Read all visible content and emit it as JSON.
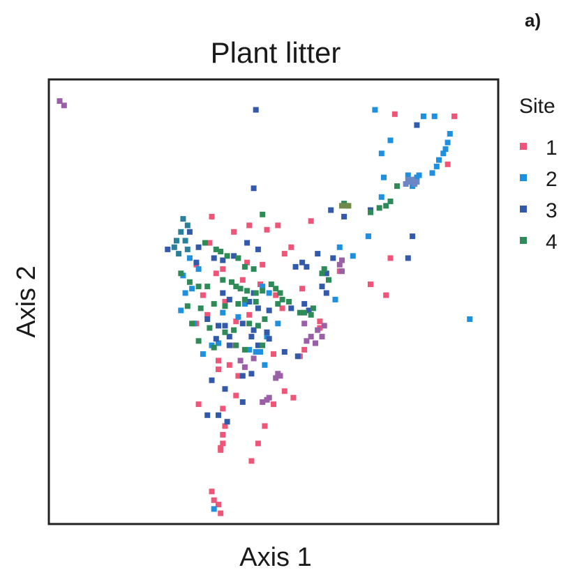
{
  "chart_data": {
    "type": "scatter",
    "panel_label": "a)",
    "title": "Plant litter",
    "xlabel": "Axis 1",
    "ylabel": "Axis 2",
    "xlim": [
      0,
      100
    ],
    "ylim": [
      0,
      100
    ],
    "grid": false,
    "legend": {
      "title": "Site",
      "placement": "right",
      "entries": [
        {
          "label": "1",
          "color": "#ef5577"
        },
        {
          "label": "2",
          "color": "#1f8fe0"
        },
        {
          "label": "3",
          "color": "#3359ab"
        },
        {
          "label": "4",
          "color": "#2e8b57"
        }
      ]
    },
    "series": [
      {
        "name": "1",
        "color": "#ef5577",
        "points": [
          [
            77.5,
            93
          ],
          [
            91.0,
            92.5
          ],
          [
            89.5,
            81.5
          ],
          [
            36.0,
            69.5
          ],
          [
            44.5,
            67.5
          ],
          [
            48.5,
            66.5
          ],
          [
            51.0,
            67.5
          ],
          [
            58.5,
            68.5
          ],
          [
            41.0,
            66.0
          ],
          [
            35.5,
            63.5
          ],
          [
            52.5,
            61.0
          ],
          [
            54.0,
            62.5
          ],
          [
            47.5,
            58.5
          ],
          [
            44.0,
            59.0
          ],
          [
            38.5,
            57.5
          ],
          [
            32.5,
            58.5
          ],
          [
            37.0,
            56.5
          ],
          [
            43.0,
            55.0
          ],
          [
            47.0,
            54.0
          ],
          [
            34.0,
            51.5
          ],
          [
            39.0,
            50.0
          ],
          [
            35.0,
            47.0
          ],
          [
            32.5,
            45.0
          ],
          [
            50.5,
            51.5
          ],
          [
            56.5,
            53.0
          ],
          [
            52.0,
            48.5
          ],
          [
            41.5,
            45.5
          ],
          [
            44.5,
            47.0
          ],
          [
            41.0,
            40.0
          ],
          [
            37.5,
            36.5
          ],
          [
            40.0,
            35.5
          ],
          [
            37.5,
            34.5
          ],
          [
            42.0,
            33.0
          ],
          [
            50.0,
            38.0
          ],
          [
            56.0,
            37.5
          ],
          [
            57.0,
            39.0
          ],
          [
            60.5,
            44.0
          ],
          [
            60.5,
            45.5
          ],
          [
            65.0,
            57.0
          ],
          [
            71.5,
            65.0
          ],
          [
            76.5,
            60.0
          ],
          [
            75.5,
            51.5
          ],
          [
            72.0,
            54.0
          ],
          [
            52.5,
            29.5
          ],
          [
            41.5,
            28.5
          ],
          [
            50.0,
            26.5
          ],
          [
            54.5,
            28.0
          ],
          [
            33.0,
            26.5
          ],
          [
            38.5,
            25.5
          ],
          [
            39.0,
            21.5
          ],
          [
            38.5,
            19.5
          ],
          [
            38.5,
            17.5
          ],
          [
            38.0,
            16.0
          ],
          [
            38.0,
            16.5
          ],
          [
            46.5,
            17.5
          ],
          [
            45.0,
            13.5
          ],
          [
            48.0,
            21.5
          ],
          [
            36.0,
            6.5
          ],
          [
            36.5,
            4.5
          ],
          [
            37.5,
            3.5
          ],
          [
            38.0,
            1.5
          ]
        ]
      },
      {
        "name": "2",
        "color": "#1f8fe0",
        "points": [
          [
            73.0,
            94.0
          ],
          [
            84.0,
            92.5
          ],
          [
            86.5,
            92.5
          ],
          [
            76.5,
            87.0
          ],
          [
            90.0,
            88.5
          ],
          [
            89.5,
            86.5
          ],
          [
            89.0,
            85.0
          ],
          [
            88.5,
            84.0
          ],
          [
            87.5,
            82.5
          ],
          [
            87.0,
            81.0
          ],
          [
            86.0,
            79.5
          ],
          [
            83.0,
            79.0
          ],
          [
            75.0,
            78.5
          ],
          [
            80.5,
            79.0
          ],
          [
            82.0,
            78.0
          ],
          [
            82.5,
            78.5
          ],
          [
            81.5,
            76.5
          ],
          [
            94.5,
            46.0
          ],
          [
            64.0,
            50.5
          ],
          [
            31.0,
            60.0
          ],
          [
            33.0,
            57.5
          ],
          [
            29.5,
            56.0
          ],
          [
            31.5,
            53.0
          ],
          [
            30.0,
            52.0
          ],
          [
            29.0,
            48.0
          ],
          [
            32.0,
            45.0
          ],
          [
            43.5,
            49.5
          ],
          [
            42.0,
            46.5
          ],
          [
            47.5,
            53.5
          ],
          [
            49.0,
            52.0
          ],
          [
            51.0,
            45.0
          ],
          [
            48.5,
            42.0
          ],
          [
            46.0,
            38.5
          ],
          [
            34.0,
            38.0
          ],
          [
            36.0,
            40.0
          ],
          [
            37.5,
            40.5
          ],
          [
            44.5,
            39.0
          ],
          [
            38.5,
            47.5
          ],
          [
            47.0,
            38.5
          ],
          [
            48.0,
            35.5
          ],
          [
            36.5,
            2.5
          ],
          [
            65.0,
            62.5
          ],
          [
            68.0,
            60.5
          ],
          [
            71.5,
            65.0
          ],
          [
            74.5,
            74.0
          ],
          [
            74.5,
            84.0
          ]
        ]
      },
      {
        "name": "3",
        "color": "#3359ab",
        "points": [
          [
            46.0,
            94.0
          ],
          [
            82.5,
            90.5
          ],
          [
            45.5,
            76.0
          ],
          [
            63.0,
            71.0
          ],
          [
            66.0,
            69.5
          ],
          [
            72.0,
            71.0
          ],
          [
            81.5,
            65.0
          ],
          [
            80.5,
            60.0
          ],
          [
            26.0,
            62.0
          ],
          [
            31.0,
            66.0
          ],
          [
            33.0,
            62.5
          ],
          [
            32.5,
            59.0
          ],
          [
            36.5,
            60.0
          ],
          [
            38.5,
            59.5
          ],
          [
            44.0,
            63.5
          ],
          [
            46.5,
            62.0
          ],
          [
            41.0,
            60.5
          ],
          [
            38.5,
            52.0
          ],
          [
            40.0,
            50.5
          ],
          [
            45.5,
            52.0
          ],
          [
            44.5,
            50.0
          ],
          [
            46.5,
            48.5
          ],
          [
            49.0,
            48.0
          ],
          [
            35.0,
            46.0
          ],
          [
            37.5,
            44.5
          ],
          [
            39.0,
            44.5
          ],
          [
            40.0,
            42.0
          ],
          [
            43.0,
            45.0
          ],
          [
            45.5,
            43.5
          ],
          [
            48.5,
            43.0
          ],
          [
            54.0,
            48.5
          ],
          [
            57.0,
            49.5
          ],
          [
            58.0,
            48.0
          ],
          [
            37.0,
            41.5
          ],
          [
            40.0,
            40.0
          ],
          [
            45.0,
            42.0
          ],
          [
            46.5,
            40.0
          ],
          [
            49.0,
            41.5
          ],
          [
            52.5,
            38.5
          ],
          [
            55.5,
            37.5
          ],
          [
            43.0,
            33.0
          ],
          [
            45.0,
            33.5
          ],
          [
            36.0,
            32.0
          ],
          [
            39.0,
            30.0
          ],
          [
            43.0,
            27.0
          ],
          [
            35.0,
            24.0
          ],
          [
            37.5,
            24.0
          ],
          [
            39.5,
            22.5
          ],
          [
            55.0,
            58.0
          ],
          [
            56.5,
            59.0
          ],
          [
            57.5,
            58.0
          ],
          [
            60.0,
            61.0
          ],
          [
            63.5,
            60.0
          ],
          [
            62.0,
            56.5
          ],
          [
            61.0,
            53.5
          ],
          [
            62.0,
            52.0
          ]
        ]
      },
      {
        "name": "4",
        "color": "#2e8b57",
        "points": [
          [
            78.0,
            76.5
          ],
          [
            76.5,
            73.0
          ],
          [
            75.5,
            72.0
          ],
          [
            74.0,
            71.5
          ],
          [
            72.0,
            70.5
          ],
          [
            66.0,
            72.5
          ],
          [
            47.5,
            70.0
          ],
          [
            34.5,
            63.5
          ],
          [
            37.0,
            62.0
          ],
          [
            38.0,
            61.5
          ],
          [
            39.5,
            60.5
          ],
          [
            42.0,
            60.0
          ],
          [
            43.5,
            58.0
          ],
          [
            45.5,
            57.5
          ],
          [
            29.0,
            56.5
          ],
          [
            31.0,
            54.5
          ],
          [
            33.0,
            53.5
          ],
          [
            35.0,
            53.5
          ],
          [
            38.5,
            55.0
          ],
          [
            40.5,
            54.5
          ],
          [
            41.5,
            53.5
          ],
          [
            42.5,
            53.0
          ],
          [
            44.0,
            52.5
          ],
          [
            46.0,
            52.0
          ],
          [
            47.5,
            52.5
          ],
          [
            49.5,
            54.0
          ],
          [
            50.5,
            53.0
          ],
          [
            51.5,
            52.0
          ],
          [
            52.0,
            50.5
          ],
          [
            53.5,
            50.0
          ],
          [
            30.5,
            49.0
          ],
          [
            33.5,
            48.5
          ],
          [
            36.5,
            49.5
          ],
          [
            39.0,
            49.0
          ],
          [
            42.0,
            49.5
          ],
          [
            43.5,
            50.5
          ],
          [
            46.0,
            50.0
          ],
          [
            51.0,
            49.5
          ],
          [
            56.0,
            47.5
          ],
          [
            57.0,
            47.5
          ],
          [
            58.5,
            47.0
          ],
          [
            59.0,
            48.5
          ],
          [
            31.5,
            45.0
          ],
          [
            35.5,
            44.0
          ],
          [
            39.0,
            43.0
          ],
          [
            41.0,
            43.5
          ],
          [
            44.5,
            45.0
          ],
          [
            46.5,
            44.5
          ],
          [
            48.0,
            46.0
          ],
          [
            33.0,
            41.0
          ],
          [
            36.5,
            39.5
          ],
          [
            41.5,
            40.0
          ],
          [
            43.5,
            39.0
          ],
          [
            47.5,
            40.0
          ],
          [
            61.0,
            56.5
          ],
          [
            62.5,
            55.0
          ],
          [
            61.5,
            57.5
          ]
        ]
      },
      {
        "name": "",
        "color": "#9b5fa8",
        "points": [
          [
            1.5,
            96.0
          ],
          [
            2.5,
            95.0
          ],
          [
            42.5,
            36.5
          ],
          [
            43.5,
            35.0
          ],
          [
            45.5,
            37.0
          ],
          [
            50.5,
            32.5
          ],
          [
            51.0,
            33.5
          ],
          [
            51.5,
            33.0
          ],
          [
            47.5,
            27.0
          ],
          [
            48.5,
            27.5
          ],
          [
            49.0,
            28.0
          ],
          [
            60.0,
            43.5
          ],
          [
            61.0,
            42.0
          ],
          [
            61.5,
            44.5
          ],
          [
            57.5,
            41.0
          ],
          [
            58.5,
            42.0
          ],
          [
            59.5,
            40.5
          ],
          [
            57.0,
            45.0
          ],
          [
            65.0,
            58.5
          ],
          [
            65.5,
            57.0
          ],
          [
            65.5,
            59.5
          ]
        ]
      },
      {
        "name": "",
        "color": "#2a7f9a",
        "points": [
          [
            29.5,
            69.0
          ],
          [
            30.5,
            67.5
          ],
          [
            29.0,
            66.0
          ],
          [
            30.0,
            64.0
          ],
          [
            28.0,
            64.0
          ],
          [
            27.5,
            62.5
          ],
          [
            28.5,
            61.0
          ],
          [
            30.5,
            62.0
          ]
        ]
      },
      {
        "name": "",
        "color": "#6f8a4a",
        "points": [
          [
            65.5,
            72.0
          ],
          [
            66.5,
            72.0
          ],
          [
            67.0,
            72.0
          ]
        ]
      },
      {
        "name": "",
        "color": "#6b86c4",
        "points": [
          [
            80.0,
            77.0
          ],
          [
            81.0,
            77.5
          ],
          [
            82.0,
            77.0
          ],
          [
            82.5,
            77.5
          ],
          [
            81.5,
            78.0
          ],
          [
            80.5,
            78.0
          ]
        ]
      }
    ]
  }
}
